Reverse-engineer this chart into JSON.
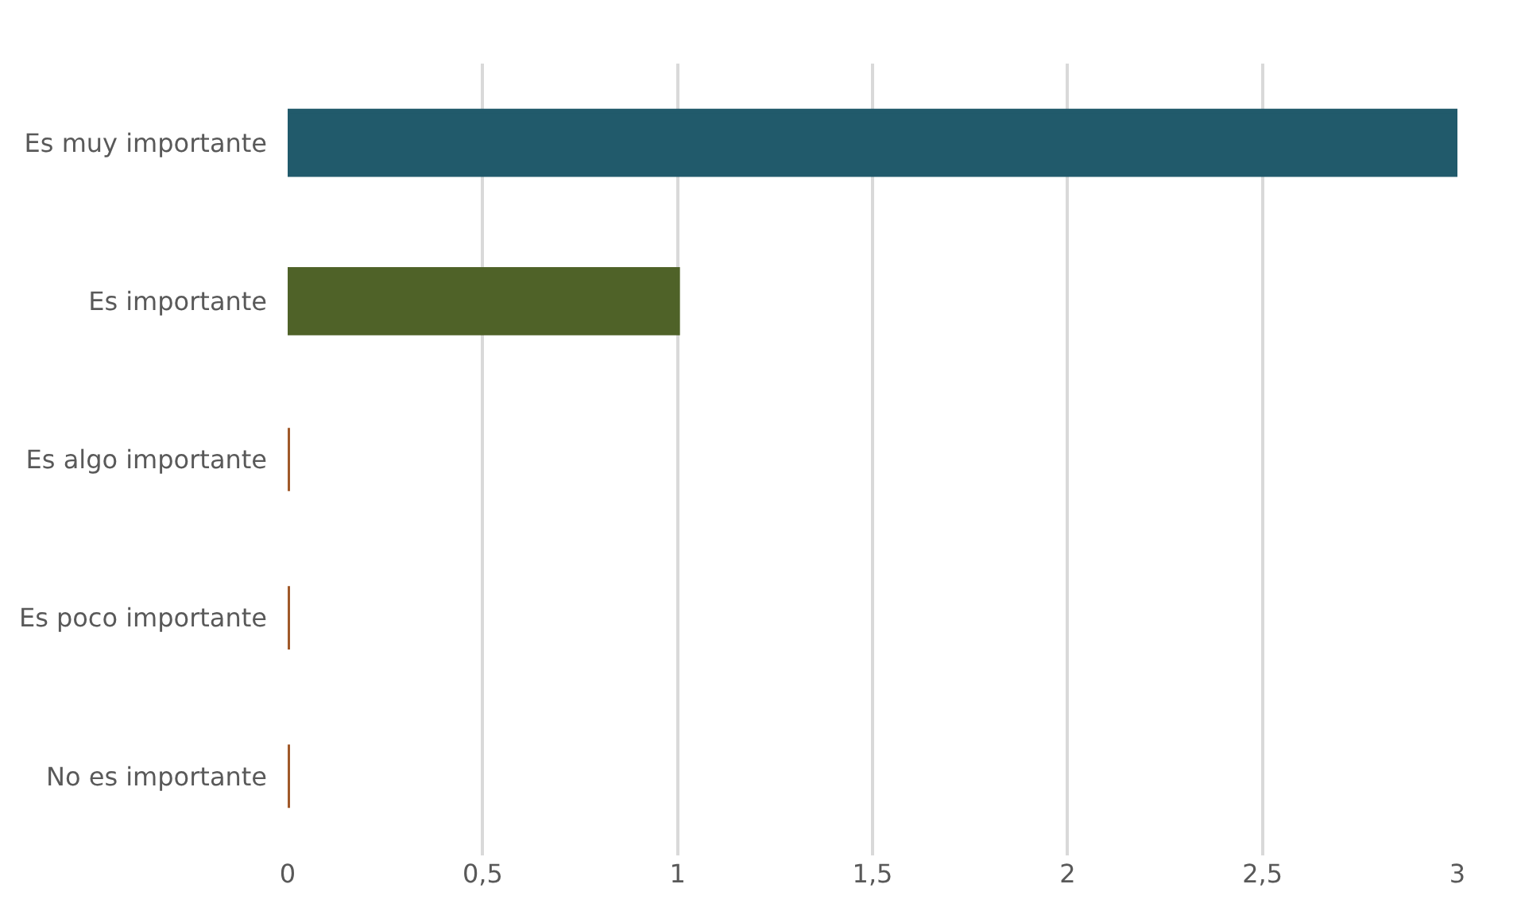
{
  "chart_data": {
    "type": "bar",
    "orientation": "horizontal",
    "categories": [
      "Es muy importante",
      "Es importante",
      "Es algo importante",
      "Es poco importante",
      "No es importante"
    ],
    "values": [
      3,
      1,
      0,
      0,
      0
    ],
    "colors": [
      "#215a6b",
      "#4f6228",
      "#a0592a",
      "#a0592a",
      "#a0592a"
    ],
    "xlim": [
      0,
      3
    ],
    "xticks": [
      0,
      {
        "value": 0.5,
        "label": "0,5"
      },
      1,
      {
        "value": 1.5,
        "label": "1,5"
      },
      2,
      {
        "value": 2.5,
        "label": "2,5"
      },
      3
    ],
    "grid": "x"
  }
}
